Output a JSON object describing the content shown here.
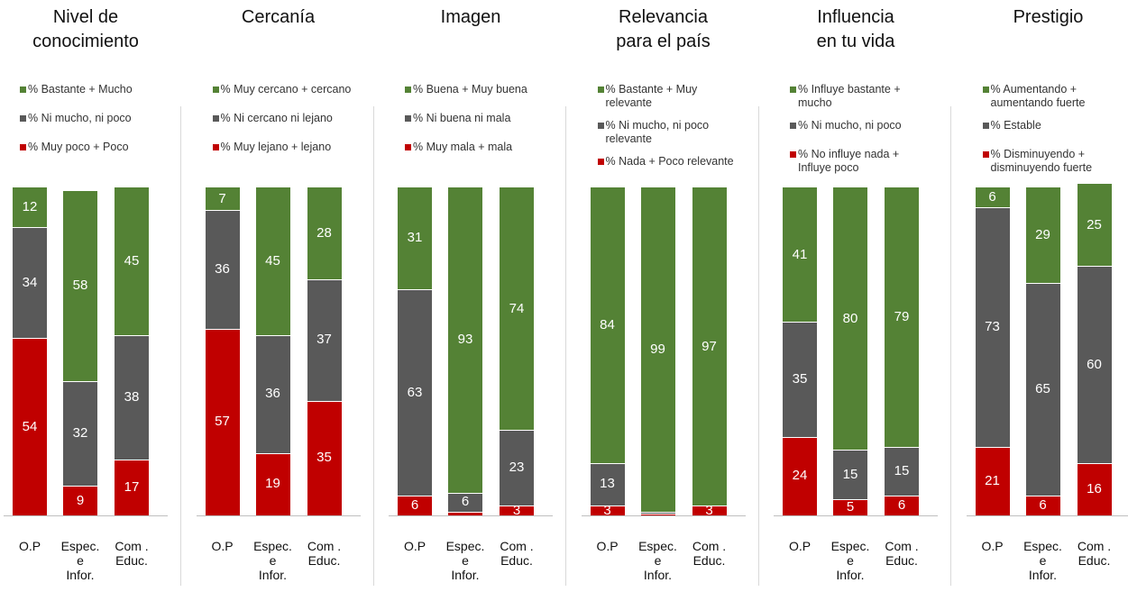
{
  "chart_data": [
    {
      "type": "stacked-bar",
      "title": "Nivel de\nconocimiento",
      "categories": [
        "O.P",
        "Espec.\ne\nInfor.",
        "Com .\nEduc."
      ],
      "ylim": [
        0,
        100
      ],
      "series": [
        {
          "name": "% Bastante + Mucho",
          "color": "#548235",
          "values": [
            12,
            58,
            45
          ]
        },
        {
          "name": "% Ni mucho, ni poco",
          "color": "#595959",
          "values": [
            34,
            32,
            38
          ]
        },
        {
          "name": "% Muy poco + Poco",
          "color": "#c00000",
          "values": [
            54,
            9,
            17
          ]
        }
      ]
    },
    {
      "type": "stacked-bar",
      "title": "Cercanía",
      "categories": [
        "O.P",
        "Espec.\ne\nInfor.",
        "Com .\nEduc."
      ],
      "ylim": [
        0,
        100
      ],
      "series": [
        {
          "name": "% Muy cercano + cercano",
          "color": "#548235",
          "values": [
            7,
            45,
            28
          ]
        },
        {
          "name": "% Ni cercano ni lejano",
          "color": "#595959",
          "values": [
            36,
            36,
            37
          ]
        },
        {
          "name": "% Muy lejano + lejano",
          "color": "#c00000",
          "values": [
            57,
            19,
            35
          ]
        }
      ]
    },
    {
      "type": "stacked-bar",
      "title": "Imagen",
      "categories": [
        "O.P",
        "Espec.\ne\nInfor.",
        "Com .\nEduc."
      ],
      "ylim": [
        0,
        100
      ],
      "series": [
        {
          "name": "% Buena + Muy buena",
          "color": "#548235",
          "values": [
            31,
            93,
            74
          ]
        },
        {
          "name": "% Ni buena ni mala",
          "color": "#595959",
          "values": [
            63,
            6,
            23
          ]
        },
        {
          "name": "% Muy mala + mala",
          "color": "#c00000",
          "values": [
            6,
            1,
            3
          ]
        }
      ]
    },
    {
      "type": "stacked-bar",
      "title": "Relevancia\npara el país",
      "categories": [
        "O.P",
        "Espec.\ne\nInfor.",
        "Com .\nEduc."
      ],
      "ylim": [
        0,
        100
      ],
      "series": [
        {
          "name": "% Bastante + Muy relevante",
          "color": "#548235",
          "values": [
            84,
            99,
            97
          ]
        },
        {
          "name": "% Ni mucho, ni poco relevante",
          "color": "#595959",
          "values": [
            13,
            0.5,
            0
          ]
        },
        {
          "name": "% Nada + Poco relevante",
          "color": "#c00000",
          "values": [
            3,
            0.5,
            3
          ]
        }
      ]
    },
    {
      "type": "stacked-bar",
      "title": "Influencia\nen tu vida",
      "categories": [
        "O.P",
        "Espec.\ne\nInfor.",
        "Com .\nEduc."
      ],
      "ylim": [
        0,
        100
      ],
      "series": [
        {
          "name": "% Influye bastante + mucho",
          "color": "#548235",
          "values": [
            41,
            80,
            79
          ]
        },
        {
          "name": "% Ni mucho, ni poco",
          "color": "#595959",
          "values": [
            35,
            15,
            15
          ]
        },
        {
          "name": "% No influye nada + Influye poco",
          "color": "#c00000",
          "values": [
            24,
            5,
            6
          ]
        }
      ]
    },
    {
      "type": "stacked-bar",
      "title": "Prestigio",
      "categories": [
        "O.P",
        "Espec.\ne\nInfor.",
        "Com .\nEduc."
      ],
      "ylim": [
        0,
        100
      ],
      "series": [
        {
          "name": "% Aumentando + aumentando fuerte",
          "color": "#548235",
          "values": [
            6,
            29,
            25
          ]
        },
        {
          "name": "% Estable",
          "color": "#595959",
          "values": [
            73,
            65,
            60
          ]
        },
        {
          "name": "% Disminuyendo + disminuyendo fuerte",
          "color": "#c00000",
          "values": [
            21,
            6,
            16
          ]
        }
      ]
    }
  ]
}
